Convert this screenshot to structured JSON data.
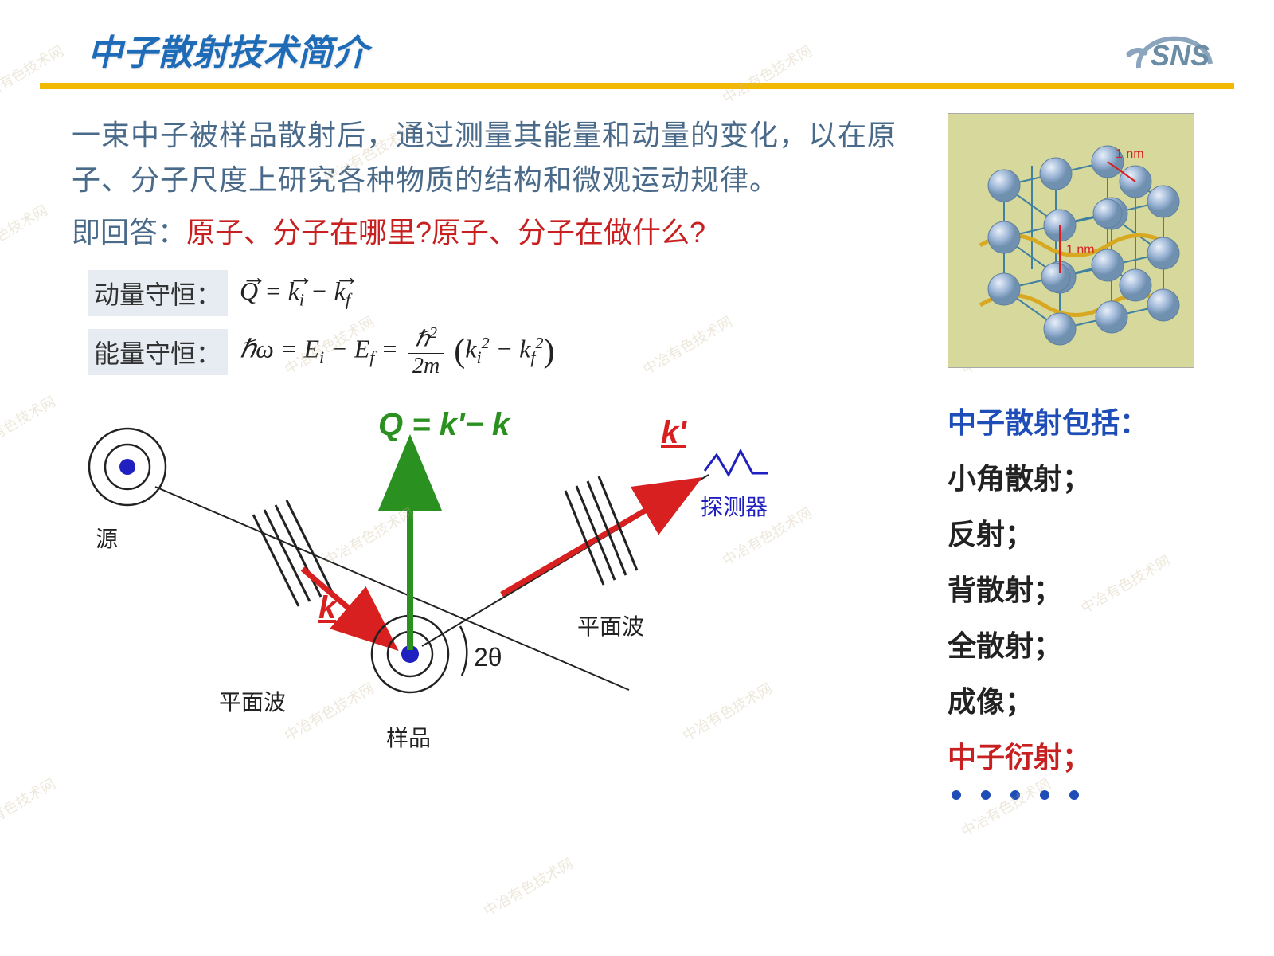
{
  "title": "中子散射技术简介",
  "logo_text": "SNS",
  "logo_text_color": "#6b8ca5",
  "logo_arc_color": "#8aa5bd",
  "title_bar_color": "#f2b900",
  "title_color": "#1e6bb8",
  "intro_text": "一束中子被样品散射后，通过测量其能量和动量的变化，以在原子、分子尺度上研究各种物质的结构和微观运动规律。",
  "question_prefix": "即回答：",
  "question_red": "原子、分子在哪里?原子、分子在做什么?",
  "eq_momentum_label": "动量守恒：",
  "eq_energy_label": "能量守恒：",
  "eq_momentum_formula_html": "<i>Q⃗</i> = <i>k⃗</i><sub>i</sub> − <i>k⃗</i><sub>f</sub>",
  "list_title": "中子散射包括：",
  "list_items": [
    {
      "text": "小角散射；",
      "color": "#222"
    },
    {
      "text": "反射；",
      "color": "#222"
    },
    {
      "text": "背散射；",
      "color": "#222"
    },
    {
      "text": "全散射；",
      "color": "#222"
    },
    {
      "text": "成像；",
      "color": "#222"
    },
    {
      "text": "中子衍射；",
      "color": "#c82020"
    }
  ],
  "dot_count": 5,
  "dot_color": "#1e4db8",
  "diagram": {
    "source_label": "源",
    "sample_label": "样品",
    "detector_label": "探测器",
    "planewave_label": "平面波",
    "k_label": "k",
    "kprime_label": "k'",
    "Q_eq": "Q = k'− k",
    "angle_label": "2θ",
    "k_color": "#d82020",
    "Q_color": "#2a9020",
    "detector_color": "#2020c0",
    "text_color": "#222"
  },
  "lattice": {
    "bg": "#d6d89c",
    "sphere_fill": "#a0b8d8",
    "sphere_highlight": "#e8f0f8",
    "edge_color": "#4080a0",
    "label": "1 nm",
    "label_color": "#d82020",
    "wave_color": "#d8a820"
  },
  "watermark_text": "中冶有色技术网",
  "colors": {
    "body_text": "#4a6a8a",
    "red_text": "#c82020",
    "list_title": "#1e4db8"
  }
}
